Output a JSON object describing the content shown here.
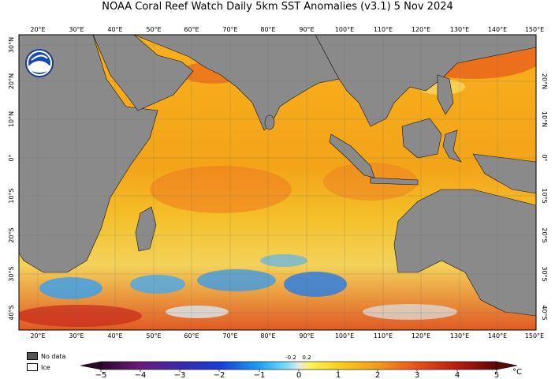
{
  "title": "NOAA Coral Reef Watch Daily 5km SST Anomalies  (v3.1)   5 Nov 2024",
  "logo_text": "NOAA",
  "lon_labels": [
    "20°E",
    "30°E",
    "40°E",
    "50°E",
    "60°E",
    "70°E",
    "80°E",
    "90°E",
    "100°E",
    "110°E",
    "120°E",
    "130°E",
    "140°E",
    "150°E"
  ],
  "lat_labels": [
    "30°N",
    "20°N",
    "10°N",
    "0°",
    "10°S",
    "20°S",
    "30°S",
    "40°S"
  ],
  "legend": {
    "no_data": "No data",
    "ice": "Ice"
  },
  "colorbar": {
    "ticks": [
      "−5",
      "−4",
      "−3",
      "−2",
      "−1",
      "0",
      "1",
      "2",
      "3",
      "4",
      "5"
    ],
    "small_ticks": [
      "-0.2",
      "0.2"
    ],
    "unit": "°C"
  },
  "colors": {
    "land": "#8a8a8a",
    "ocean_warm": "#f6b21a",
    "ocean_hot": "#e8641c",
    "ocean_cool": "#3fa0e8",
    "ice": "#ffffff"
  }
}
